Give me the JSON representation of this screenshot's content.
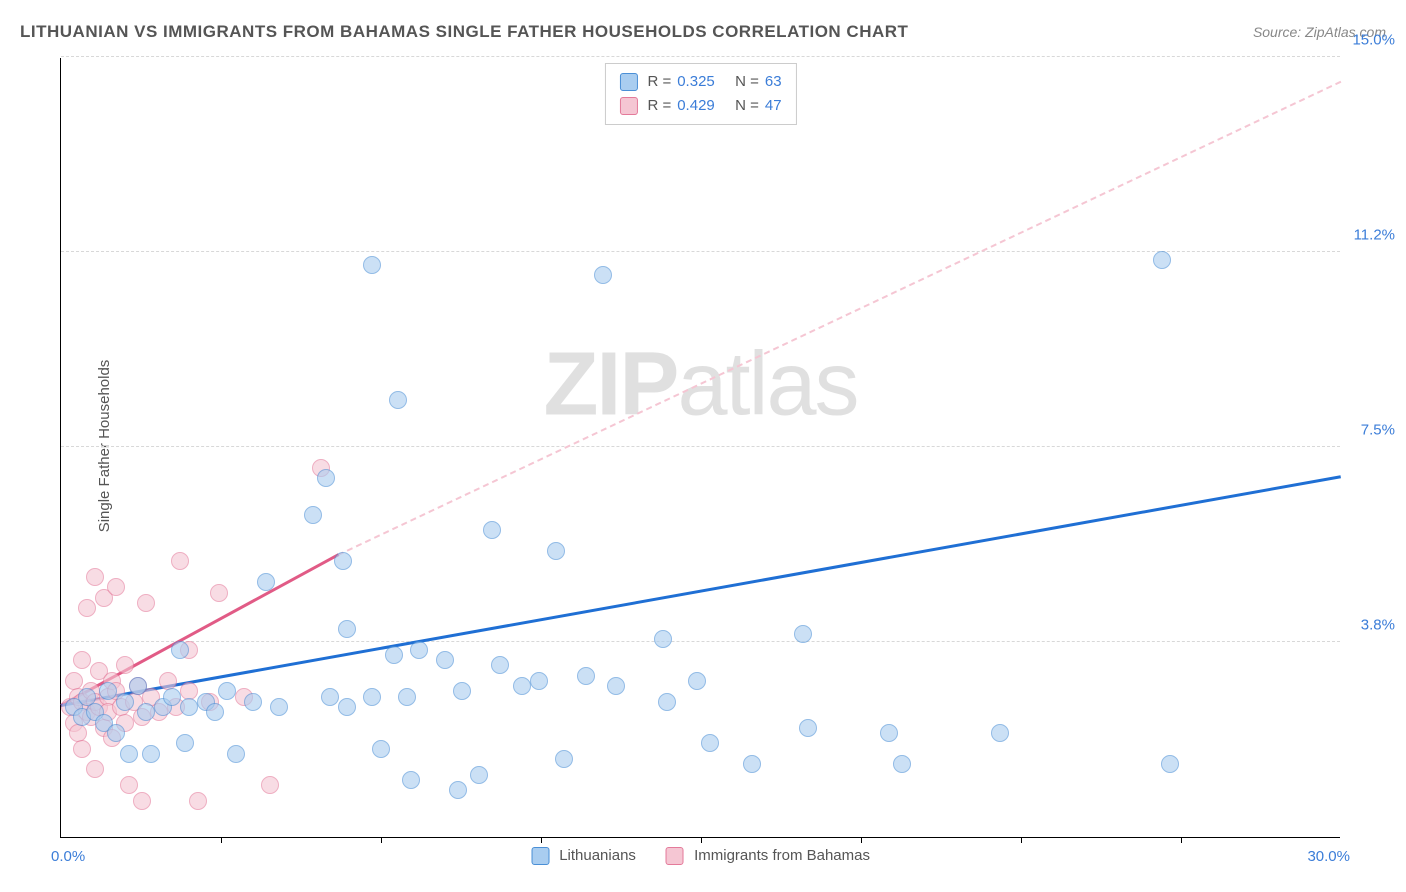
{
  "title": "LITHUANIAN VS IMMIGRANTS FROM BAHAMAS SINGLE FATHER HOUSEHOLDS CORRELATION CHART",
  "source": "Source: ZipAtlas.com",
  "y_axis_label": "Single Father Households",
  "watermark_bold": "ZIP",
  "watermark_light": "atlas",
  "chart": {
    "type": "scatter",
    "background_color": "#ffffff",
    "grid_color": "#d8d8d8",
    "axis_color": "#000000",
    "xlim": [
      0,
      30
    ],
    "ylim": [
      0,
      15
    ],
    "x_tick_positions": [
      3.75,
      7.5,
      11.25,
      15,
      18.75,
      22.5,
      26.25
    ],
    "x_label_min": "0.0%",
    "x_label_max": "30.0%",
    "y_gridlines": [
      {
        "value": 3.75,
        "label": "3.8%"
      },
      {
        "value": 7.5,
        "label": "7.5%"
      },
      {
        "value": 11.25,
        "label": "11.2%"
      },
      {
        "value": 15.0,
        "label": "15.0%"
      }
    ],
    "point_radius": 9,
    "point_opacity": 0.6,
    "series_a": {
      "label": "Lithuanians",
      "fill_color": "#a9cdf0",
      "stroke_color": "#4a8fd6",
      "R": "0.325",
      "N": "63",
      "trend": {
        "x1": 0,
        "y1": 2.5,
        "x2": 30,
        "y2": 6.9,
        "color": "#1f6fd4",
        "width": 3,
        "dashed": false
      },
      "points": [
        [
          0.3,
          2.5
        ],
        [
          0.5,
          2.3
        ],
        [
          0.6,
          2.7
        ],
        [
          0.8,
          2.4
        ],
        [
          1.0,
          2.2
        ],
        [
          1.1,
          2.8
        ],
        [
          1.3,
          2.0
        ],
        [
          1.5,
          2.6
        ],
        [
          1.6,
          1.6
        ],
        [
          1.8,
          2.9
        ],
        [
          2.0,
          2.4
        ],
        [
          2.1,
          1.6
        ],
        [
          2.4,
          2.5
        ],
        [
          2.6,
          2.7
        ],
        [
          2.8,
          3.6
        ],
        [
          2.9,
          1.8
        ],
        [
          3.0,
          2.5
        ],
        [
          3.4,
          2.6
        ],
        [
          3.6,
          2.4
        ],
        [
          3.9,
          2.8
        ],
        [
          4.1,
          1.6
        ],
        [
          4.5,
          2.6
        ],
        [
          4.8,
          4.9
        ],
        [
          5.1,
          2.5
        ],
        [
          5.9,
          6.2
        ],
        [
          6.2,
          6.9
        ],
        [
          6.3,
          2.7
        ],
        [
          6.6,
          5.3
        ],
        [
          6.7,
          4.0
        ],
        [
          6.7,
          2.5
        ],
        [
          7.3,
          2.7
        ],
        [
          7.3,
          11.0
        ],
        [
          7.5,
          1.7
        ],
        [
          7.8,
          3.5
        ],
        [
          7.9,
          8.4
        ],
        [
          8.1,
          2.7
        ],
        [
          8.2,
          1.1
        ],
        [
          8.4,
          3.6
        ],
        [
          9.0,
          3.4
        ],
        [
          9.3,
          0.9
        ],
        [
          9.4,
          2.8
        ],
        [
          9.8,
          1.2
        ],
        [
          10.1,
          5.9
        ],
        [
          10.3,
          3.3
        ],
        [
          10.8,
          2.9
        ],
        [
          11.2,
          3.0
        ],
        [
          11.6,
          5.5
        ],
        [
          11.8,
          1.5
        ],
        [
          12.3,
          3.1
        ],
        [
          12.7,
          10.8
        ],
        [
          13.0,
          2.9
        ],
        [
          14.1,
          3.8
        ],
        [
          14.2,
          2.6
        ],
        [
          14.9,
          3.0
        ],
        [
          15.2,
          1.8
        ],
        [
          16.2,
          1.4
        ],
        [
          17.4,
          3.9
        ],
        [
          17.5,
          2.1
        ],
        [
          19.4,
          2.0
        ],
        [
          19.7,
          1.4
        ],
        [
          22.0,
          2.0
        ],
        [
          25.8,
          11.1
        ],
        [
          26.0,
          1.4
        ]
      ]
    },
    "series_b": {
      "label": "Immigrants from Bahamas",
      "fill_color": "#f5c6d3",
      "stroke_color": "#e47a9a",
      "R": "0.429",
      "N": "47",
      "trend_solid": {
        "x1": 0,
        "y1": 2.5,
        "x2": 6.5,
        "y2": 5.4,
        "color": "#e15b86",
        "width": 3,
        "dashed": false
      },
      "trend_dashed": {
        "x1": 6.5,
        "y1": 5.4,
        "x2": 30,
        "y2": 14.5,
        "color": "#f5c6d3",
        "width": 2,
        "dashed": true
      },
      "points": [
        [
          0.2,
          2.5
        ],
        [
          0.3,
          2.2
        ],
        [
          0.3,
          3.0
        ],
        [
          0.4,
          2.7
        ],
        [
          0.4,
          2.0
        ],
        [
          0.5,
          2.6
        ],
        [
          0.5,
          3.4
        ],
        [
          0.5,
          1.7
        ],
        [
          0.6,
          2.4
        ],
        [
          0.6,
          4.4
        ],
        [
          0.7,
          2.3
        ],
        [
          0.7,
          2.8
        ],
        [
          0.8,
          2.6
        ],
        [
          0.8,
          5.0
        ],
        [
          0.8,
          1.3
        ],
        [
          0.9,
          2.5
        ],
        [
          0.9,
          3.2
        ],
        [
          1.0,
          2.1
        ],
        [
          1.0,
          4.6
        ],
        [
          1.1,
          2.7
        ],
        [
          1.1,
          2.4
        ],
        [
          1.2,
          3.0
        ],
        [
          1.2,
          1.9
        ],
        [
          1.3,
          2.8
        ],
        [
          1.3,
          4.8
        ],
        [
          1.4,
          2.5
        ],
        [
          1.5,
          2.2
        ],
        [
          1.5,
          3.3
        ],
        [
          1.6,
          1.0
        ],
        [
          1.7,
          2.6
        ],
        [
          1.8,
          2.9
        ],
        [
          1.9,
          2.3
        ],
        [
          1.9,
          0.7
        ],
        [
          2.0,
          4.5
        ],
        [
          2.1,
          2.7
        ],
        [
          2.3,
          2.4
        ],
        [
          2.5,
          3.0
        ],
        [
          2.7,
          2.5
        ],
        [
          2.8,
          5.3
        ],
        [
          3.0,
          2.8
        ],
        [
          3.0,
          3.6
        ],
        [
          3.2,
          0.7
        ],
        [
          3.5,
          2.6
        ],
        [
          3.7,
          4.7
        ],
        [
          4.3,
          2.7
        ],
        [
          4.9,
          1.0
        ],
        [
          6.1,
          7.1
        ]
      ]
    },
    "legend_top": {
      "r_label": "R =",
      "n_label": "N ="
    }
  }
}
